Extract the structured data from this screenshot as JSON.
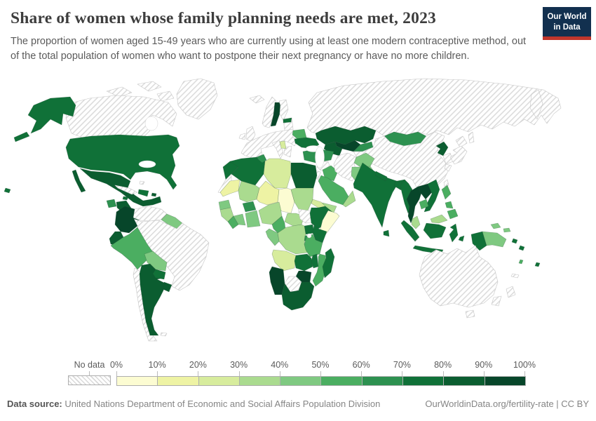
{
  "header": {
    "title": "Share of women whose family planning needs are met, 2023",
    "subtitle": "The proportion of women aged 15-49 years who are currently using at least one modern contraceptive method, out of the total population of women who want to postpone their next pregnancy or have no more children.",
    "logo": {
      "line1": "Our World",
      "line2": "in Data",
      "bg_color": "#12304f",
      "stripe_color": "#c0362c"
    }
  },
  "legend": {
    "no_data_label": "No data",
    "tick_labels": [
      "0%",
      "10%",
      "20%",
      "30%",
      "40%",
      "50%",
      "60%",
      "70%",
      "80%",
      "90%",
      "100%"
    ],
    "bins": [
      {
        "label": "0%-10%",
        "color": "#fcfcd2"
      },
      {
        "label": "10%-20%",
        "color": "#eef3a4"
      },
      {
        "label": "20%-30%",
        "color": "#d7ec9d"
      },
      {
        "label": "30%-40%",
        "color": "#aadb8f"
      },
      {
        "label": "40%-50%",
        "color": "#7fc981"
      },
      {
        "label": "50%-60%",
        "color": "#4bae61"
      },
      {
        "label": "60%-70%",
        "color": "#2d9150"
      },
      {
        "label": "70%-80%",
        "color": "#107138"
      },
      {
        "label": "80%-90%",
        "color": "#0b5d30"
      },
      {
        "label": "90%-100%",
        "color": "#07462a"
      }
    ]
  },
  "footer": {
    "source_label": "Data source:",
    "source_text": "United Nations Department of Economic and Social Affairs Population Division",
    "link_text": "OurWorldinData.org/fertility-rate | CC BY"
  },
  "chart_data": {
    "type": "choropleth",
    "title": "Share of women whose family planning needs are met, 2023",
    "unit": "%",
    "value_range": [
      0,
      100
    ],
    "no_data_style": "hatched",
    "regions": [
      {
        "id": "greenland",
        "name": "Greenland",
        "value": null
      },
      {
        "id": "canada",
        "name": "Canada",
        "value": null
      },
      {
        "id": "united-states",
        "name": "United States",
        "value": 78
      },
      {
        "id": "mexico",
        "name": "Mexico",
        "value": 84
      },
      {
        "id": "guatemala",
        "name": "Guatemala",
        "value": 66
      },
      {
        "id": "honduras-nicaragua",
        "name": "Honduras & Nicaragua",
        "value": 86
      },
      {
        "id": "costa-rica-panama",
        "name": "Costa Rica & Panama",
        "value": 82
      },
      {
        "id": "cuba",
        "name": "Cuba",
        "value": null
      },
      {
        "id": "bahamas",
        "name": "Bahamas",
        "value": null
      },
      {
        "id": "jamaica",
        "name": "Jamaica",
        "value": 72
      },
      {
        "id": "hispaniola",
        "name": "Haiti & Dominican Republic",
        "value": 75
      },
      {
        "id": "puerto-rico",
        "name": "Puerto Rico",
        "value": 80
      },
      {
        "id": "colombia",
        "name": "Colombia",
        "value": 91
      },
      {
        "id": "venezuela",
        "name": "Venezuela",
        "value": null
      },
      {
        "id": "guyanas",
        "name": "Guyana & Suriname",
        "value": 42
      },
      {
        "id": "brazil",
        "name": "Brazil",
        "value": null
      },
      {
        "id": "ecuador",
        "name": "Ecuador",
        "value": 85
      },
      {
        "id": "peru",
        "name": "Peru",
        "value": 57
      },
      {
        "id": "bolivia",
        "name": "Bolivia",
        "value": 47
      },
      {
        "id": "paraguay",
        "name": "Paraguay",
        "value": 79
      },
      {
        "id": "chile",
        "name": "Chile",
        "value": null
      },
      {
        "id": "argentina",
        "name": "Argentina",
        "value": 83
      },
      {
        "id": "uruguay",
        "name": "Uruguay",
        "value": 84
      },
      {
        "id": "falkland-islands",
        "name": "Falkland Islands",
        "value": null
      },
      {
        "id": "iceland",
        "name": "Iceland",
        "value": null
      },
      {
        "id": "norway",
        "name": "Norway",
        "value": null
      },
      {
        "id": "sweden",
        "name": "Sweden",
        "value": 91
      },
      {
        "id": "finland",
        "name": "Finland",
        "value": null
      },
      {
        "id": "united-kingdom",
        "name": "United Kingdom",
        "value": null
      },
      {
        "id": "ireland",
        "name": "Ireland",
        "value": null
      },
      {
        "id": "europe-mainland",
        "name": "Continental Europe",
        "value": null
      },
      {
        "id": "italy",
        "name": "Italy",
        "value": null
      },
      {
        "id": "greece",
        "name": "Greece",
        "value": null
      },
      {
        "id": "albania",
        "name": "Albania",
        "value": 22
      },
      {
        "id": "baltic-states",
        "name": "Latvia & Lithuania",
        "value": null
      },
      {
        "id": "estonia",
        "name": "Estonia",
        "value": 79
      },
      {
        "id": "belarus",
        "name": "Belarus",
        "value": 58
      },
      {
        "id": "ukraine",
        "name": "Ukraine",
        "value": 72
      },
      {
        "id": "russia",
        "name": "Russia",
        "value": null
      },
      {
        "id": "kazakhstan",
        "name": "Kazakhstan",
        "value": 80
      },
      {
        "id": "uzbekistan",
        "name": "Uzbekistan",
        "value": 91
      },
      {
        "id": "turkmenistan",
        "name": "Turkmenistan",
        "value": 85
      },
      {
        "id": "kyrgyzstan-tajikistan",
        "name": "Kyrgyzstan & Tajikistan",
        "value": 60
      },
      {
        "id": "mongolia",
        "name": "Mongolia",
        "value": 62
      },
      {
        "id": "china",
        "name": "China",
        "value": null
      },
      {
        "id": "north-korea",
        "name": "North Korea",
        "value": 85
      },
      {
        "id": "south-korea",
        "name": "South Korea",
        "value": null
      },
      {
        "id": "japan",
        "name": "Japan",
        "value": null
      },
      {
        "id": "taiwan",
        "name": "Taiwan",
        "value": null
      },
      {
        "id": "turkey",
        "name": "Turkey",
        "value": 60
      },
      {
        "id": "syria",
        "name": "Syria & Lebanon",
        "value": null
      },
      {
        "id": "jordan-israel",
        "name": "Jordan & Israel",
        "value": null
      },
      {
        "id": "iraq",
        "name": "Iraq",
        "value": 57
      },
      {
        "id": "iran",
        "name": "Iran",
        "value": null
      },
      {
        "id": "saudi-arabia",
        "name": "Saudi Arabia",
        "value": 52
      },
      {
        "id": "yemen",
        "name": "Yemen",
        "value": 38
      },
      {
        "id": "oman",
        "name": "Oman",
        "value": 35
      },
      {
        "id": "afghanistan",
        "name": "Afghanistan",
        "value": 44
      },
      {
        "id": "pakistan",
        "name": "Pakistan",
        "value": 40
      },
      {
        "id": "india",
        "name": "India",
        "value": 78
      },
      {
        "id": "nepal",
        "name": "Nepal",
        "value": 72
      },
      {
        "id": "bangladesh",
        "name": "Bangladesh",
        "value": 77
      },
      {
        "id": "sri-lanka",
        "name": "Sri Lanka",
        "value": 75
      },
      {
        "id": "myanmar",
        "name": "Myanmar",
        "value": 75
      },
      {
        "id": "thailand",
        "name": "Thailand",
        "value": 90
      },
      {
        "id": "laos",
        "name": "Laos",
        "value": 92
      },
      {
        "id": "vietnam",
        "name": "Vietnam",
        "value": 78
      },
      {
        "id": "cambodia",
        "name": "Cambodia",
        "value": 56
      },
      {
        "id": "malaysia",
        "name": "Malaysia",
        "value": 38
      },
      {
        "id": "indonesia",
        "name": "Indonesia",
        "value": 78
      },
      {
        "id": "philippines",
        "name": "Philippines",
        "value": 55
      },
      {
        "id": "papua-new-guinea",
        "name": "Papua New Guinea",
        "value": 45
      },
      {
        "id": "solomon-islands",
        "name": "Solomon Islands",
        "value": 72
      },
      {
        "id": "vanuatu",
        "name": "Vanuatu",
        "value": 58
      },
      {
        "id": "new-caledonia",
        "name": "New Caledonia",
        "value": null
      },
      {
        "id": "fiji",
        "name": "Fiji",
        "value": 70
      },
      {
        "id": "australia",
        "name": "Australia",
        "value": null
      },
      {
        "id": "new-zealand",
        "name": "New Zealand",
        "value": null
      },
      {
        "id": "morocco",
        "name": "Morocco",
        "value": 72
      },
      {
        "id": "western-sahara",
        "name": "Western Sahara",
        "value": null
      },
      {
        "id": "algeria",
        "name": "Algeria",
        "value": 70
      },
      {
        "id": "tunisia",
        "name": "Tunisia",
        "value": 68
      },
      {
        "id": "libya",
        "name": "Libya",
        "value": 28
      },
      {
        "id": "egypt",
        "name": "Egypt",
        "value": 80
      },
      {
        "id": "mauritania",
        "name": "Mauritania",
        "value": 17
      },
      {
        "id": "mali",
        "name": "Mali",
        "value": 38
      },
      {
        "id": "niger",
        "name": "Niger",
        "value": 14
      },
      {
        "id": "chad",
        "name": "Chad",
        "value": 8
      },
      {
        "id": "sudan",
        "name": "Sudan",
        "value": 32
      },
      {
        "id": "south-sudan",
        "name": "South Sudan",
        "value": null
      },
      {
        "id": "senegal",
        "name": "Senegal",
        "value": 48
      },
      {
        "id": "guinea",
        "name": "Guinea",
        "value": 38
      },
      {
        "id": "sierra-leone-liberia",
        "name": "Sierra Leone & Liberia",
        "value": 55
      },
      {
        "id": "cote-divoire",
        "name": "Cote d'Ivoire",
        "value": 42
      },
      {
        "id": "burkina-faso",
        "name": "Burkina Faso",
        "value": 62
      },
      {
        "id": "ghana-togo-benin",
        "name": "Ghana, Togo & Benin",
        "value": 45
      },
      {
        "id": "nigeria",
        "name": "Nigeria",
        "value": 37
      },
      {
        "id": "cameroon",
        "name": "Cameroon",
        "value": 52
      },
      {
        "id": "central-african-republic",
        "name": "Central African Republic",
        "value": 33
      },
      {
        "id": "eritrea",
        "name": "Eritrea",
        "value": 25
      },
      {
        "id": "ethiopia",
        "name": "Ethiopia",
        "value": 72
      },
      {
        "id": "somalia",
        "name": "Somalia",
        "value": 5
      },
      {
        "id": "uganda",
        "name": "Uganda",
        "value": 72
      },
      {
        "id": "kenya",
        "name": "Kenya",
        "value": 77
      },
      {
        "id": "rwanda-burundi",
        "name": "Rwanda & Burundi",
        "value": 68
      },
      {
        "id": "tanzania",
        "name": "Tanzania",
        "value": 56
      },
      {
        "id": "drc",
        "name": "Democratic Republic of Congo",
        "value": 32
      },
      {
        "id": "gabon-congo",
        "name": "Gabon & Congo",
        "value": 42
      },
      {
        "id": "angola",
        "name": "Angola",
        "value": 22
      },
      {
        "id": "zambia",
        "name": "Zambia",
        "value": 70
      },
      {
        "id": "malawi",
        "name": "Malawi",
        "value": 76
      },
      {
        "id": "mozambique",
        "name": "Mozambique",
        "value": 56
      },
      {
        "id": "zimbabwe",
        "name": "Zimbabwe",
        "value": 90
      },
      {
        "id": "botswana",
        "name": "Botswana",
        "value": null
      },
      {
        "id": "namibia",
        "name": "Namibia",
        "value": 90
      },
      {
        "id": "south-africa",
        "name": "South Africa",
        "value": 81
      },
      {
        "id": "madagascar",
        "name": "Madagascar",
        "value": 72
      }
    ]
  }
}
